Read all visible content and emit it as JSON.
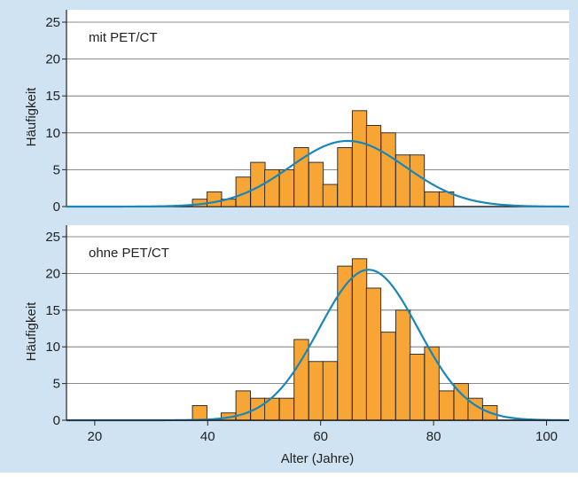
{
  "colors": {
    "frame_background": "#cfe3f2",
    "panel_background": "#ffffff",
    "bar_fill": "#f7a534",
    "bar_stroke": "#222222",
    "curve": "#1a86b8",
    "grid": "#666666",
    "axis": "#222222"
  },
  "chart_data": [
    {
      "type": "bar",
      "panel_label": "mit PET/CT",
      "ylabel": "Häufigkeit",
      "xlim": [
        15,
        104
      ],
      "ylim": [
        0,
        25
      ],
      "yticks": [
        0,
        5,
        10,
        15,
        20,
        25
      ],
      "bin_width": 2.57,
      "bins": [
        {
          "x0": 37.3,
          "count": 1
        },
        {
          "x0": 39.9,
          "count": 2
        },
        {
          "x0": 42.4,
          "count": 1
        },
        {
          "x0": 45.0,
          "count": 4
        },
        {
          "x0": 47.6,
          "count": 6
        },
        {
          "x0": 50.1,
          "count": 5
        },
        {
          "x0": 52.7,
          "count": 5
        },
        {
          "x0": 55.3,
          "count": 8
        },
        {
          "x0": 57.9,
          "count": 6
        },
        {
          "x0": 60.4,
          "count": 3
        },
        {
          "x0": 63.0,
          "count": 8
        },
        {
          "x0": 65.6,
          "count": 13
        },
        {
          "x0": 68.1,
          "count": 11
        },
        {
          "x0": 70.7,
          "count": 10
        },
        {
          "x0": 73.3,
          "count": 7
        },
        {
          "x0": 75.8,
          "count": 7
        },
        {
          "x0": 78.4,
          "count": 2
        },
        {
          "x0": 81.0,
          "count": 2
        }
      ],
      "normal_curve": {
        "mean": 64.8,
        "sd": 10.2,
        "peak": 8.9
      }
    },
    {
      "type": "bar",
      "panel_label": "ohne PET/CT",
      "ylabel": "Häufigkeit",
      "xlabel": "Alter (Jahre)",
      "xlim": [
        15,
        104
      ],
      "ylim": [
        0,
        25
      ],
      "yticks": [
        0,
        5,
        10,
        15,
        20,
        25
      ],
      "xticks": [
        20,
        40,
        60,
        80,
        100
      ],
      "bin_width": 2.57,
      "bins": [
        {
          "x0": 37.3,
          "count": 2
        },
        {
          "x0": 39.9,
          "count": 0
        },
        {
          "x0": 42.4,
          "count": 1
        },
        {
          "x0": 45.0,
          "count": 4
        },
        {
          "x0": 47.6,
          "count": 3
        },
        {
          "x0": 50.1,
          "count": 3
        },
        {
          "x0": 52.7,
          "count": 3
        },
        {
          "x0": 55.3,
          "count": 11
        },
        {
          "x0": 57.9,
          "count": 8
        },
        {
          "x0": 60.4,
          "count": 8
        },
        {
          "x0": 63.0,
          "count": 21
        },
        {
          "x0": 65.6,
          "count": 22
        },
        {
          "x0": 68.1,
          "count": 18
        },
        {
          "x0": 70.7,
          "count": 12
        },
        {
          "x0": 73.3,
          "count": 15
        },
        {
          "x0": 75.8,
          "count": 9
        },
        {
          "x0": 78.4,
          "count": 10
        },
        {
          "x0": 81.0,
          "count": 4
        },
        {
          "x0": 83.6,
          "count": 5
        },
        {
          "x0": 86.1,
          "count": 3
        },
        {
          "x0": 88.7,
          "count": 2
        }
      ],
      "normal_curve": {
        "mean": 68.5,
        "sd": 8.8,
        "peak": 20.5
      }
    }
  ]
}
